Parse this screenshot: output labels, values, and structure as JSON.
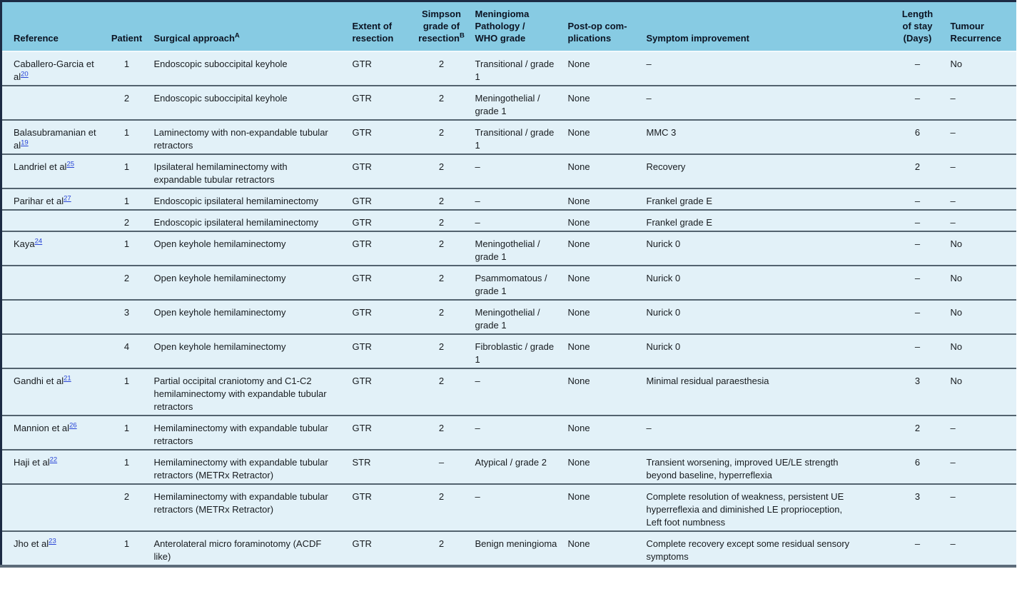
{
  "colors": {
    "header_background": "#87cbe3",
    "row_background": "#e2f1f8",
    "top_border": "#1c2b44",
    "row_rule": "#53636f",
    "bottom_border": "#5d6c7a",
    "citation_link": "#2743d6",
    "text": "#171b1f"
  },
  "table": {
    "columns": [
      {
        "id": "reference",
        "label": "Reference",
        "sup": "",
        "align": "left"
      },
      {
        "id": "patient",
        "label": "Patient",
        "sup": "",
        "align": "center"
      },
      {
        "id": "approach",
        "label": "Surgical approach",
        "sup": "A",
        "align": "left"
      },
      {
        "id": "extent",
        "label": "Extent of\nresection",
        "sup": "",
        "align": "left"
      },
      {
        "id": "simpson",
        "label": "Simpson\ngrade of\nresection",
        "sup": "B",
        "align": "center"
      },
      {
        "id": "pathology",
        "label": "Meningioma\nPathology /\nWHO grade",
        "sup": "",
        "align": "left"
      },
      {
        "id": "complications",
        "label": "Post-op com-\nplications",
        "sup": "",
        "align": "left"
      },
      {
        "id": "symptom",
        "label": "Symptom improvement",
        "sup": "",
        "align": "left"
      },
      {
        "id": "stay",
        "label": "Length\nof stay\n(Days)",
        "sup": "",
        "align": "center"
      },
      {
        "id": "recurrence",
        "label": "Tumour\nRecurrence",
        "sup": "",
        "align": "left"
      }
    ],
    "rows": [
      {
        "reference": "Caballero-Garcia et al",
        "reference_sup": "20",
        "patient": "1",
        "approach": "Endoscopic suboccipital keyhole",
        "extent": "GTR",
        "simpson": "2",
        "pathology": "Transitional / grade 1",
        "complications": "None",
        "symptom": "–",
        "stay": "–",
        "recurrence": "No"
      },
      {
        "reference": "",
        "reference_sup": "",
        "patient": "2",
        "approach": "Endoscopic suboccipital keyhole",
        "extent": "GTR",
        "simpson": "2",
        "pathology": "Meningothelial / grade 1",
        "complications": "None",
        "symptom": "–",
        "stay": "–",
        "recurrence": "–"
      },
      {
        "reference": "Balasubramanian et al",
        "reference_sup": "19",
        "patient": "1",
        "approach": "Laminectomy with non-expandable tubular retractors",
        "extent": "GTR",
        "simpson": "2",
        "pathology": "Transitional / grade 1",
        "complications": "None",
        "symptom": "MMC 3",
        "stay": "6",
        "recurrence": "–"
      },
      {
        "reference": "Landriel et al",
        "reference_sup": "25",
        "patient": "1",
        "approach": "Ipsilateral hemilaminectomy with expandable tubular retractors",
        "extent": "GTR",
        "simpson": "2",
        "pathology": "–",
        "complications": "None",
        "symptom": "Recovery",
        "stay": "2",
        "recurrence": "–"
      },
      {
        "reference": "Parihar et al",
        "reference_sup": "27",
        "patient": "1",
        "approach": "Endoscopic ipsilateral hemilaminectomy",
        "extent": "GTR",
        "simpson": "2",
        "pathology": "–",
        "complications": "None",
        "symptom": "Frankel grade E",
        "stay": "–",
        "recurrence": "–"
      },
      {
        "reference": "",
        "reference_sup": "",
        "patient": "2",
        "approach": "Endoscopic ipsilateral hemilaminectomy",
        "extent": "GTR",
        "simpson": "2",
        "pathology": "–",
        "complications": "None",
        "symptom": "Frankel grade E",
        "stay": "–",
        "recurrence": "–"
      },
      {
        "reference": "Kaya",
        "reference_sup": "24",
        "patient": "1",
        "approach": "Open keyhole hemilaminectomy",
        "extent": "GTR",
        "simpson": "2",
        "pathology": "Meningothelial / grade 1",
        "complications": "None",
        "symptom": "Nurick 0",
        "stay": "–",
        "recurrence": "No"
      },
      {
        "reference": "",
        "reference_sup": "",
        "patient": "2",
        "approach": "Open keyhole hemilaminectomy",
        "extent": "GTR",
        "simpson": "2",
        "pathology": "Psammomatous / grade 1",
        "complications": "None",
        "symptom": "Nurick 0",
        "stay": "–",
        "recurrence": "No"
      },
      {
        "reference": "",
        "reference_sup": "",
        "patient": "3",
        "approach": "Open keyhole hemilaminectomy",
        "extent": "GTR",
        "simpson": "2",
        "pathology": "Meningothelial / grade 1",
        "complications": "None",
        "symptom": "Nurick 0",
        "stay": "–",
        "recurrence": "No"
      },
      {
        "reference": "",
        "reference_sup": "",
        "patient": "4",
        "approach": "Open keyhole hemilaminectomy",
        "extent": "GTR",
        "simpson": "2",
        "pathology": "Fibroblastic / grade 1",
        "complications": "None",
        "symptom": "Nurick 0",
        "stay": "–",
        "recurrence": "No"
      },
      {
        "reference": "Gandhi et al",
        "reference_sup": "21",
        "patient": "1",
        "approach": "Partial occipital craniotomy and C1-C2 hemilaminectomy with expandable tubular retractors",
        "extent": "GTR",
        "simpson": "2",
        "pathology": "–",
        "complications": "None",
        "symptom": "Minimal residual paraesthesia",
        "stay": "3",
        "recurrence": "No"
      },
      {
        "reference": "Mannion et al",
        "reference_sup": "26",
        "patient": "1",
        "approach": "Hemilaminectomy with expandable tubular retractors",
        "extent": "GTR",
        "simpson": "2",
        "pathology": "–",
        "complications": "None",
        "symptom": "–",
        "stay": "2",
        "recurrence": "–"
      },
      {
        "reference": "Haji et al",
        "reference_sup": "22",
        "patient": "1",
        "approach": "Hemilaminectomy with expandable tubular retractors (METRx Retractor)",
        "extent": "STR",
        "simpson": "–",
        "pathology": "Atypical / grade 2",
        "complications": "None",
        "symptom": "Transient worsening, improved UE/LE strength beyond baseline, hyperreflexia",
        "stay": "6",
        "recurrence": "–"
      },
      {
        "reference": "",
        "reference_sup": "",
        "patient": "2",
        "approach": "Hemilaminectomy with expandable tubular retractors (METRx Retractor)",
        "extent": "GTR",
        "simpson": "2",
        "pathology": "–",
        "complications": "None",
        "symptom": "Complete resolution of weakness, persistent UE hyperreflexia and diminished LE proprioception, Left foot numbness",
        "stay": "3",
        "recurrence": "–"
      },
      {
        "reference": "Jho et al",
        "reference_sup": "23",
        "patient": "1",
        "approach": "Anterolateral micro foraminotomy (ACDF like)",
        "extent": "GTR",
        "simpson": "2",
        "pathology": "Benign meningioma",
        "complications": "None",
        "symptom": "Complete recovery except some residual sensory symptoms",
        "stay": "–",
        "recurrence": "–"
      }
    ]
  }
}
